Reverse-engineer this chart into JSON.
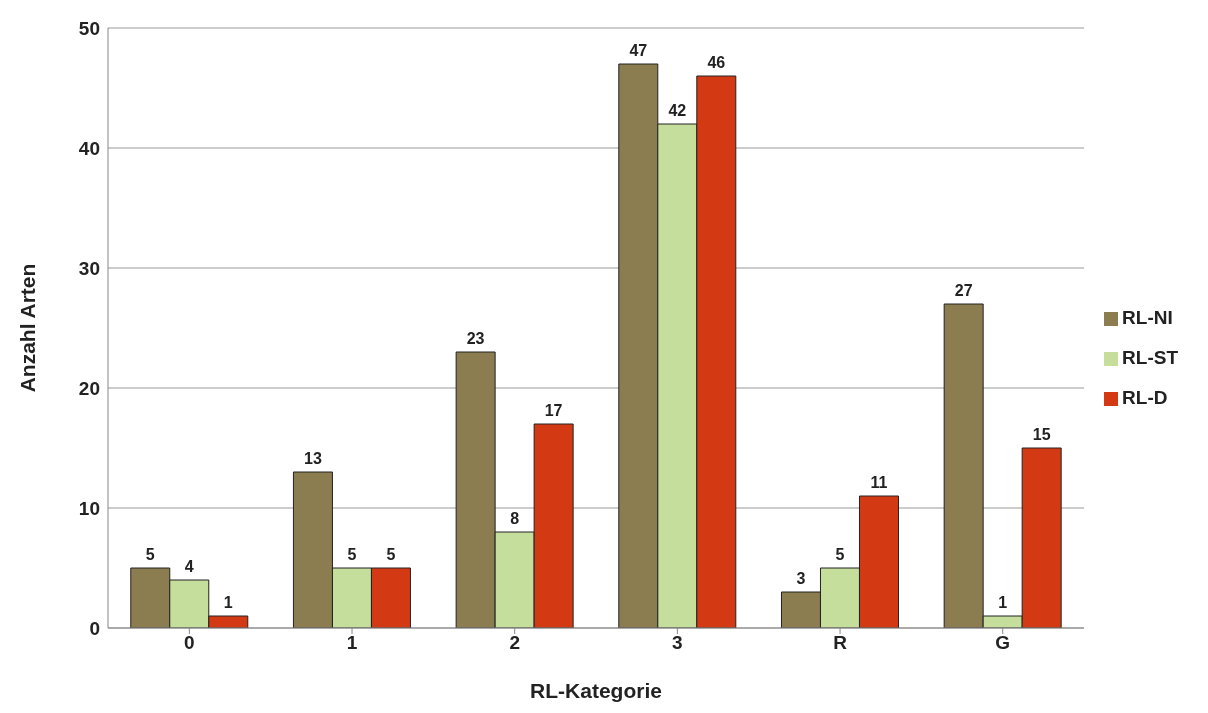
{
  "chart_data": {
    "type": "bar",
    "xlabel": "RL-Kategorie",
    "ylabel": "Anzahl Arten",
    "categories": [
      "0",
      "1",
      "2",
      "3",
      "R",
      "G"
    ],
    "series": [
      {
        "name": "RL-NI",
        "color": "#8b7d4f",
        "values": [
          5,
          13,
          23,
          47,
          3,
          27
        ]
      },
      {
        "name": "RL-ST",
        "color": "#c5de9c",
        "values": [
          4,
          5,
          8,
          42,
          5,
          1
        ]
      },
      {
        "name": "RL-D",
        "color": "#d33a14",
        "values": [
          1,
          5,
          17,
          46,
          11,
          15
        ]
      }
    ],
    "ylim": [
      0,
      50
    ],
    "yticks": [
      0,
      10,
      20,
      30,
      40,
      50
    ],
    "grid": "y",
    "legend": "right",
    "data_labels": true
  }
}
